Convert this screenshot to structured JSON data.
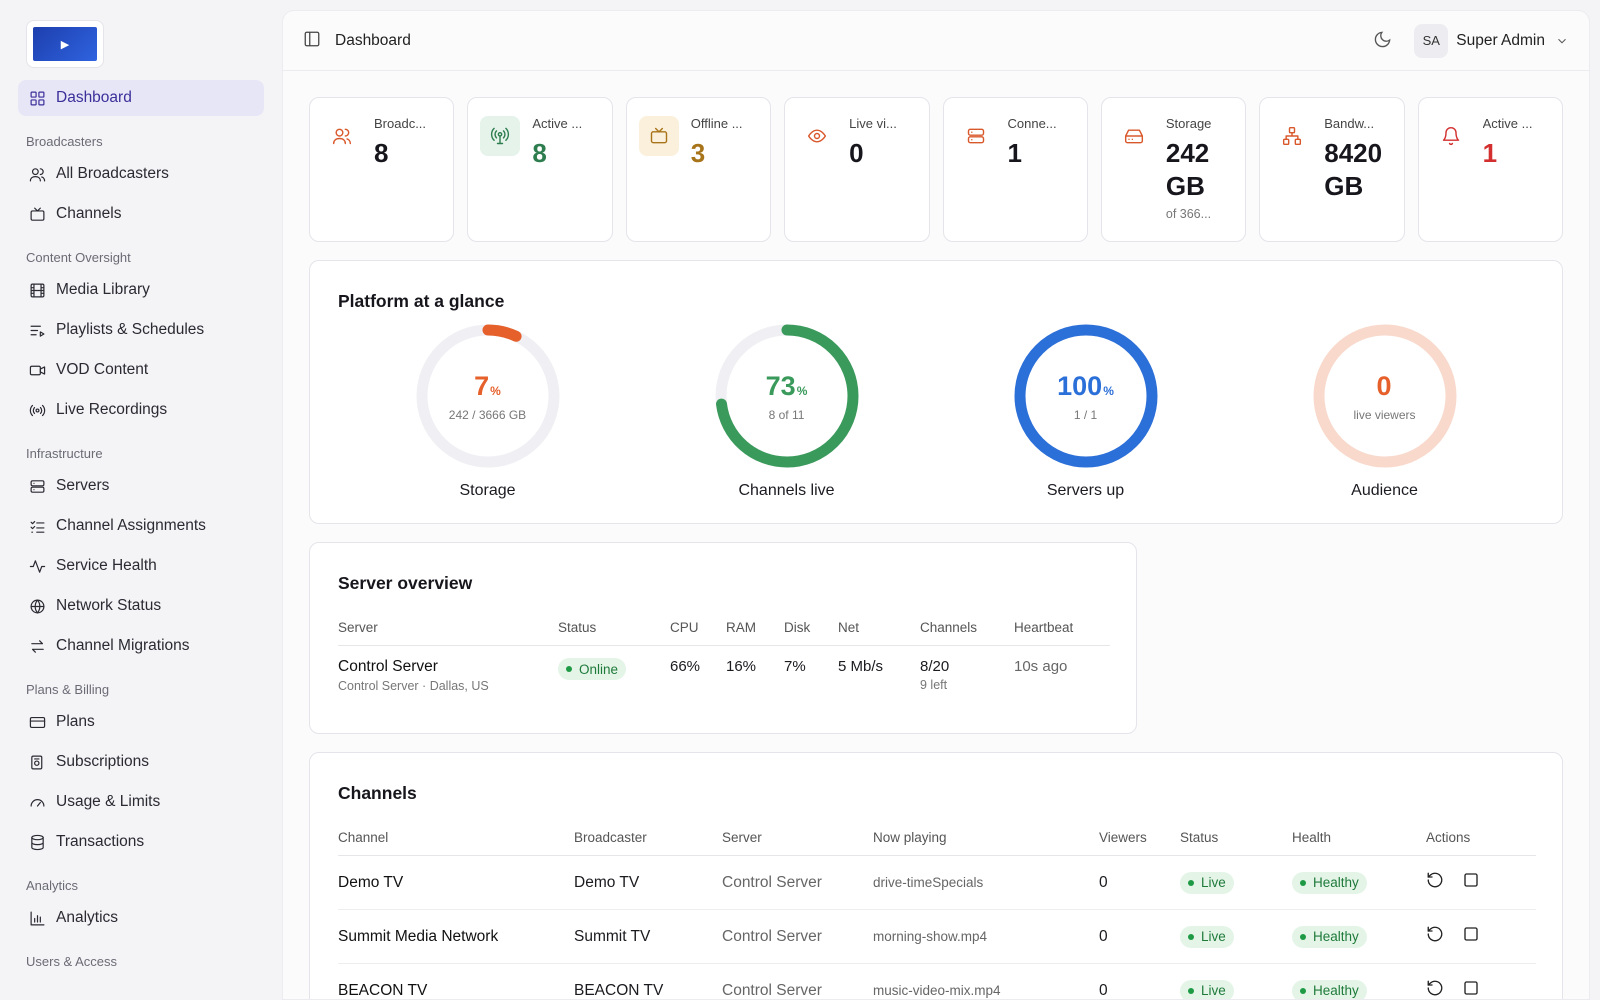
{
  "sidebar": {
    "logo_glyph": "▶",
    "dashboard": "Dashboard",
    "sections": {
      "broadcasters": "Broadcasters",
      "content": "Content Oversight",
      "infrastructure": "Infrastructure",
      "billing": "Plans & Billing",
      "analytics": "Analytics",
      "users": "Users & Access"
    },
    "items": {
      "all_broadcasters": "All Broadcasters",
      "channels": "Channels",
      "media_library": "Media Library",
      "playlists": "Playlists & Schedules",
      "vod": "VOD Content",
      "live_recordings": "Live Recordings",
      "servers": "Servers",
      "channel_assignments": "Channel Assignments",
      "service_health": "Service Health",
      "network_status": "Network Status",
      "channel_migrations": "Channel Migrations",
      "plans": "Plans",
      "subscriptions": "Subscriptions",
      "usage_limits": "Usage & Limits",
      "transactions": "Transactions",
      "analytics": "Analytics"
    }
  },
  "header": {
    "title": "Dashboard",
    "user_initials": "SA",
    "user_name": "Super Admin"
  },
  "stats": [
    {
      "label": "Broadc...",
      "value": "8",
      "sub": "",
      "icon": "users-icon",
      "color": "#d9582b",
      "bg": "#ffffff"
    },
    {
      "label": "Active ...",
      "value": "8",
      "sub": "",
      "icon": "broadcast-icon",
      "color": "#2e7d4f",
      "bg": "#e5f3ea"
    },
    {
      "label": "Offline ...",
      "value": "3",
      "sub": "",
      "icon": "tv-icon",
      "color": "#a8741a",
      "bg": "#fbf0dc"
    },
    {
      "label": "Live vi...",
      "value": "0",
      "sub": "",
      "icon": "eye-icon",
      "color": "#d9582b",
      "bg": "#ffffff"
    },
    {
      "label": "Conne...",
      "value": "1",
      "sub": "",
      "icon": "server-icon",
      "color": "#d9582b",
      "bg": "#ffffff"
    },
    {
      "label": "Storage",
      "value": "242 GB",
      "sub": "of 366...",
      "icon": "hard-drive-icon",
      "color": "#d9582b",
      "bg": "#ffffff"
    },
    {
      "label": "Bandw...",
      "value": "8420 GB",
      "sub": "",
      "icon": "network-icon",
      "color": "#d9582b",
      "bg": "#ffffff"
    },
    {
      "label": "Active ...",
      "value": "1",
      "sub": "",
      "icon": "bell-icon",
      "color": "#d32f2f",
      "bg": "#ffffff"
    }
  ],
  "glance": {
    "title": "Platform at a glance",
    "gauges": [
      {
        "name": "Storage",
        "value": "7",
        "unit": "%",
        "sub": "242 / 3666 GB",
        "fraction": 0.07,
        "color": "#e5602b",
        "track": "#f0f0f4"
      },
      {
        "name": "Channels live",
        "value": "73",
        "unit": "%",
        "sub": "8 of 11",
        "fraction": 0.73,
        "color": "#3a9a5b",
        "track": "#f0f0f4"
      },
      {
        "name": "Servers up",
        "value": "100",
        "unit": "%",
        "sub": "1 / 1",
        "fraction": 1.0,
        "color": "#2b6fd8",
        "track": "#f0f0f4"
      },
      {
        "name": "Audience",
        "value": "0",
        "unit": "",
        "sub": "live viewers",
        "fraction": 0.0,
        "color": "#e5602b",
        "track": "#f8d9cc"
      }
    ]
  },
  "server_overview": {
    "title": "Server overview",
    "columns": [
      "Server",
      "Status",
      "CPU",
      "RAM",
      "Disk",
      "Net",
      "Channels",
      "Heartbeat"
    ],
    "rows": [
      {
        "name": "Control Server",
        "location": "Control Server · Dallas, US",
        "status": "Online",
        "cpu": "66%",
        "ram": "16%",
        "disk": "7%",
        "net": "5 Mb/s",
        "channels": "8/20",
        "channels_left": "9 left",
        "heartbeat": "10s ago"
      }
    ]
  },
  "channels": {
    "title": "Channels",
    "columns": [
      "Channel",
      "Broadcaster",
      "Server",
      "Now playing",
      "Viewers",
      "Status",
      "Health",
      "Actions"
    ],
    "rows": [
      {
        "channel": "Demo TV",
        "broadcaster": "Demo TV",
        "server": "Control Server",
        "now_playing": "drive-timeSpecials",
        "viewers": "0",
        "status": "Live",
        "health": "Healthy"
      },
      {
        "channel": "Summit Media Network",
        "broadcaster": "Summit TV",
        "server": "Control Server",
        "now_playing": "morning-show.mp4",
        "viewers": "0",
        "status": "Live",
        "health": "Healthy"
      },
      {
        "channel": "BEACON TV",
        "broadcaster": "BEACON TV",
        "server": "Control Server",
        "now_playing": "music-video-mix.mp4",
        "viewers": "0",
        "status": "Live",
        "health": "Healthy"
      }
    ]
  }
}
